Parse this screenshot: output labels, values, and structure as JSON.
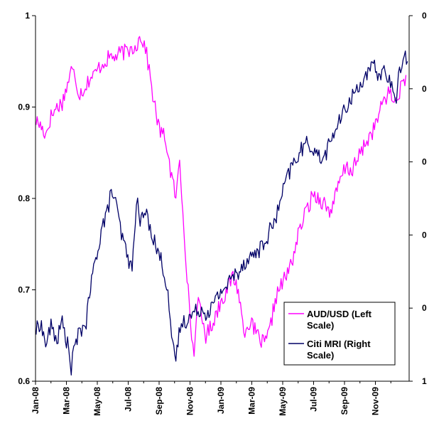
{
  "chart_data": {
    "type": "line",
    "title": "",
    "xlabel": "",
    "ylabel": "",
    "x_ticks": [
      "Jan-08",
      "Mar-08",
      "May-08",
      "Jul-08",
      "Sep-08",
      "Nov-08",
      "Jan-09",
      "Mar-09",
      "May-09",
      "Jul-09",
      "Sep-09",
      "Nov-09"
    ],
    "xlim": [
      "2008-01-01",
      "2009-12-01"
    ],
    "ylim_left": [
      0.6,
      1.0
    ],
    "y_ticks_left": [
      "0.6",
      "0.7",
      "0.8",
      "0.9",
      "1"
    ],
    "y_ticks_right": [
      "1",
      "0",
      "0",
      "0",
      "0",
      "0"
    ],
    "legend_position": "bottom-right",
    "grid": false,
    "colors": {
      "aud": "#ff00ff",
      "citi": "#000066",
      "axis": "#000000"
    },
    "series": [
      {
        "name": "AUD/USD (Left Scale)",
        "axis": "left",
        "color": "#ff00ff",
        "points": [
          [
            "2008-01-02",
            0.885
          ],
          [
            "2008-01-10",
            0.88
          ],
          [
            "2008-01-20",
            0.87
          ],
          [
            "2008-01-30",
            0.89
          ],
          [
            "2008-02-10",
            0.9
          ],
          [
            "2008-02-20",
            0.905
          ],
          [
            "2008-03-01",
            0.925
          ],
          [
            "2008-03-08",
            0.94
          ],
          [
            "2008-03-15",
            0.935
          ],
          [
            "2008-03-22",
            0.915
          ],
          [
            "2008-04-01",
            0.92
          ],
          [
            "2008-04-10",
            0.93
          ],
          [
            "2008-04-20",
            0.935
          ],
          [
            "2008-05-01",
            0.945
          ],
          [
            "2008-05-10",
            0.95
          ],
          [
            "2008-05-20",
            0.955
          ],
          [
            "2008-06-01",
            0.955
          ],
          [
            "2008-06-10",
            0.96
          ],
          [
            "2008-06-20",
            0.96
          ],
          [
            "2008-07-01",
            0.965
          ],
          [
            "2008-07-10",
            0.97
          ],
          [
            "2008-07-16",
            0.978
          ],
          [
            "2008-07-25",
            0.965
          ],
          [
            "2008-08-01",
            0.94
          ],
          [
            "2008-08-10",
            0.905
          ],
          [
            "2008-08-20",
            0.875
          ],
          [
            "2008-09-01",
            0.865
          ],
          [
            "2008-09-10",
            0.83
          ],
          [
            "2008-09-20",
            0.8
          ],
          [
            "2008-09-27",
            0.84
          ],
          [
            "2008-10-05",
            0.77
          ],
          [
            "2008-10-15",
            0.68
          ],
          [
            "2008-10-24",
            0.625
          ],
          [
            "2008-10-30",
            0.69
          ],
          [
            "2008-11-05",
            0.675
          ],
          [
            "2008-11-15",
            0.65
          ],
          [
            "2008-11-25",
            0.66
          ],
          [
            "2008-12-05",
            0.675
          ],
          [
            "2008-12-15",
            0.69
          ],
          [
            "2008-12-25",
            0.7
          ],
          [
            "2009-01-05",
            0.715
          ],
          [
            "2009-01-15",
            0.7
          ],
          [
            "2009-01-25",
            0.655
          ],
          [
            "2009-02-05",
            0.665
          ],
          [
            "2009-02-15",
            0.655
          ],
          [
            "2009-02-25",
            0.645
          ],
          [
            "2009-03-05",
            0.64
          ],
          [
            "2009-03-15",
            0.655
          ],
          [
            "2009-03-25",
            0.69
          ],
          [
            "2009-04-05",
            0.705
          ],
          [
            "2009-04-15",
            0.715
          ],
          [
            "2009-04-25",
            0.73
          ],
          [
            "2009-05-05",
            0.755
          ],
          [
            "2009-05-15",
            0.775
          ],
          [
            "2009-05-25",
            0.79
          ],
          [
            "2009-06-05",
            0.805
          ],
          [
            "2009-06-15",
            0.8
          ],
          [
            "2009-06-25",
            0.795
          ],
          [
            "2009-07-05",
            0.785
          ],
          [
            "2009-07-15",
            0.8
          ],
          [
            "2009-07-25",
            0.82
          ],
          [
            "2009-08-05",
            0.835
          ],
          [
            "2009-08-15",
            0.83
          ],
          [
            "2009-08-25",
            0.84
          ],
          [
            "2009-09-05",
            0.855
          ],
          [
            "2009-09-15",
            0.865
          ],
          [
            "2009-09-25",
            0.875
          ],
          [
            "2009-10-05",
            0.89
          ],
          [
            "2009-10-15",
            0.91
          ],
          [
            "2009-10-25",
            0.915
          ],
          [
            "2009-11-05",
            0.905
          ],
          [
            "2009-11-15",
            0.92
          ],
          [
            "2009-11-25",
            0.935
          ]
        ]
      },
      {
        "name": "Citi MRI (Right Scale)",
        "axis": "right",
        "color": "#000066",
        "points": [
          [
            "2008-01-02",
            0.655
          ],
          [
            "2008-01-10",
            0.665
          ],
          [
            "2008-01-20",
            0.64
          ],
          [
            "2008-01-30",
            0.66
          ],
          [
            "2008-02-10",
            0.645
          ],
          [
            "2008-02-20",
            0.665
          ],
          [
            "2008-03-01",
            0.64
          ],
          [
            "2008-03-08",
            0.615
          ],
          [
            "2008-03-15",
            0.64
          ],
          [
            "2008-03-25",
            0.655
          ],
          [
            "2008-04-05",
            0.665
          ],
          [
            "2008-04-15",
            0.71
          ],
          [
            "2008-04-25",
            0.74
          ],
          [
            "2008-05-05",
            0.77
          ],
          [
            "2008-05-15",
            0.785
          ],
          [
            "2008-05-22",
            0.81
          ],
          [
            "2008-06-01",
            0.79
          ],
          [
            "2008-06-10",
            0.76
          ],
          [
            "2008-06-20",
            0.74
          ],
          [
            "2008-06-30",
            0.72
          ],
          [
            "2008-07-08",
            0.8
          ],
          [
            "2008-07-15",
            0.775
          ],
          [
            "2008-07-25",
            0.785
          ],
          [
            "2008-08-05",
            0.765
          ],
          [
            "2008-08-15",
            0.745
          ],
          [
            "2008-08-25",
            0.73
          ],
          [
            "2008-09-05",
            0.7
          ],
          [
            "2008-09-12",
            0.64
          ],
          [
            "2008-09-20",
            0.625
          ],
          [
            "2008-09-28",
            0.66
          ],
          [
            "2008-10-05",
            0.665
          ],
          [
            "2008-10-15",
            0.67
          ],
          [
            "2008-10-25",
            0.675
          ],
          [
            "2008-11-05",
            0.68
          ],
          [
            "2008-11-15",
            0.675
          ],
          [
            "2008-11-25",
            0.68
          ],
          [
            "2008-12-05",
            0.69
          ],
          [
            "2008-12-15",
            0.7
          ],
          [
            "2008-12-25",
            0.705
          ],
          [
            "2009-01-05",
            0.715
          ],
          [
            "2009-01-15",
            0.72
          ],
          [
            "2009-01-25",
            0.73
          ],
          [
            "2009-02-05",
            0.735
          ],
          [
            "2009-02-15",
            0.74
          ],
          [
            "2009-02-25",
            0.745
          ],
          [
            "2009-03-05",
            0.75
          ],
          [
            "2009-03-15",
            0.765
          ],
          [
            "2009-03-25",
            0.775
          ],
          [
            "2009-04-05",
            0.8
          ],
          [
            "2009-04-15",
            0.82
          ],
          [
            "2009-04-25",
            0.835
          ],
          [
            "2009-05-05",
            0.845
          ],
          [
            "2009-05-15",
            0.855
          ],
          [
            "2009-05-25",
            0.86
          ],
          [
            "2009-06-05",
            0.855
          ],
          [
            "2009-06-15",
            0.845
          ],
          [
            "2009-06-25",
            0.845
          ],
          [
            "2009-07-05",
            0.86
          ],
          [
            "2009-07-15",
            0.875
          ],
          [
            "2009-07-25",
            0.885
          ],
          [
            "2009-08-05",
            0.9
          ],
          [
            "2009-08-15",
            0.91
          ],
          [
            "2009-08-25",
            0.92
          ],
          [
            "2009-09-05",
            0.93
          ],
          [
            "2009-09-15",
            0.935
          ],
          [
            "2009-09-25",
            0.945
          ],
          [
            "2009-10-05",
            0.935
          ],
          [
            "2009-10-15",
            0.94
          ],
          [
            "2009-10-25",
            0.93
          ],
          [
            "2009-11-05",
            0.905
          ],
          [
            "2009-11-15",
            0.945
          ],
          [
            "2009-11-22",
            0.962
          ],
          [
            "2009-11-28",
            0.95
          ]
        ]
      }
    ]
  }
}
